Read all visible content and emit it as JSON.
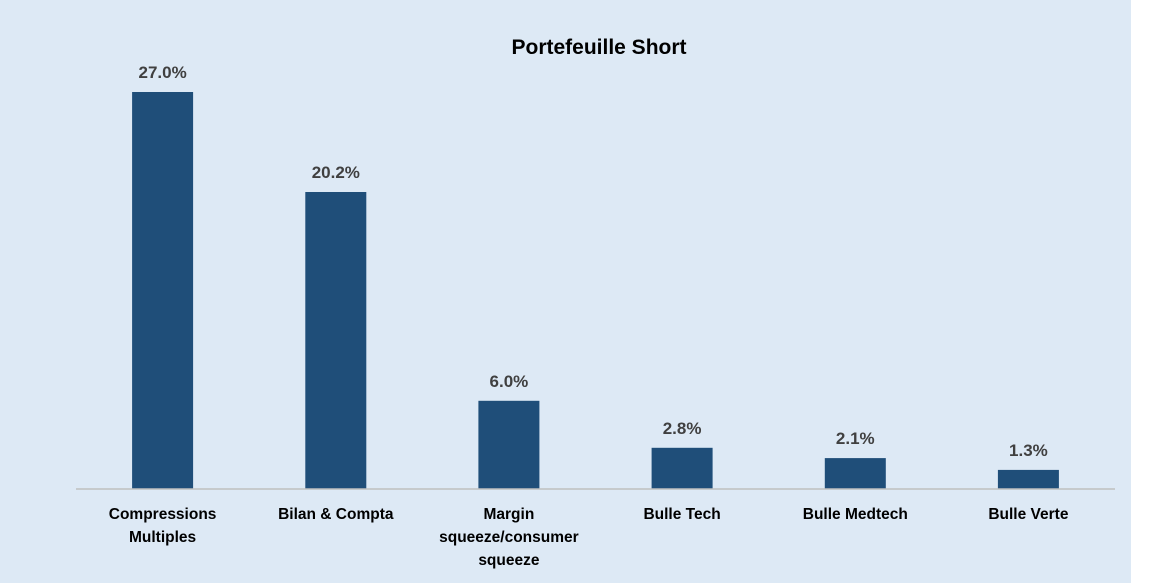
{
  "chart_data": {
    "type": "bar",
    "title": "Portefeuille Short",
    "categories": [
      [
        "Compressions",
        "Multiples"
      ],
      [
        "Bilan & Compta"
      ],
      [
        "Margin",
        "squeeze/consumer",
        "squeeze"
      ],
      [
        "Bulle Tech"
      ],
      [
        "Bulle Medtech"
      ],
      [
        "Bulle Verte"
      ]
    ],
    "values": [
      27.0,
      20.2,
      6.0,
      2.8,
      2.1,
      1.3
    ],
    "value_labels": [
      "27.0%",
      "20.2%",
      "6.0%",
      "2.8%",
      "2.1%",
      "1.3%"
    ],
    "ylim": [
      0,
      27.0
    ],
    "bar_color": "#1f4e79",
    "background_color": "#dde9f5",
    "axis_color": "#bfbfbf",
    "grid": false,
    "legend": "none"
  }
}
